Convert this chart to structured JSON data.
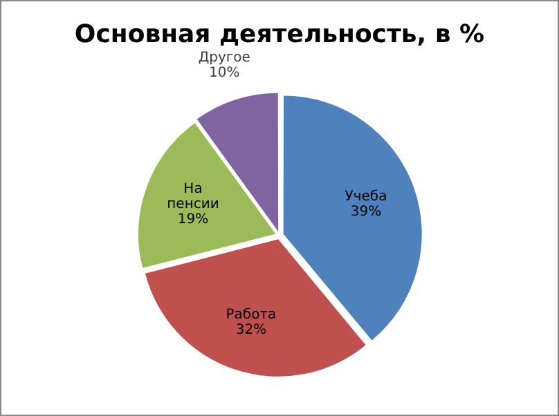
{
  "chart_data": {
    "type": "pie",
    "title": "Основная деятельность, в %",
    "categories": [
      "Учеба",
      "Работа",
      "На пенсии",
      "Другое"
    ],
    "values": [
      39,
      32,
      19,
      10
    ],
    "colors": [
      "#4f81bd",
      "#c0504d",
      "#9bbb59",
      "#8064a2"
    ],
    "value_labels": [
      "39%",
      "32%",
      "19%",
      "10%"
    ],
    "legend": false
  }
}
